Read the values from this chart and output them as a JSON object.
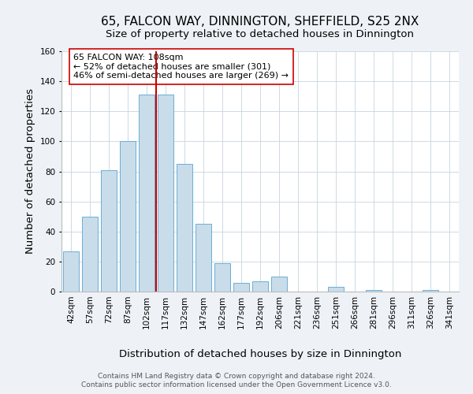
{
  "title": "65, FALCON WAY, DINNINGTON, SHEFFIELD, S25 2NX",
  "subtitle": "Size of property relative to detached houses in Dinnington",
  "xlabel": "Distribution of detached houses by size in Dinnington",
  "ylabel": "Number of detached properties",
  "bar_labels": [
    "42sqm",
    "57sqm",
    "72sqm",
    "87sqm",
    "102sqm",
    "117sqm",
    "132sqm",
    "147sqm",
    "162sqm",
    "177sqm",
    "192sqm",
    "206sqm",
    "221sqm",
    "236sqm",
    "251sqm",
    "266sqm",
    "281sqm",
    "296sqm",
    "311sqm",
    "326sqm",
    "341sqm"
  ],
  "bar_values": [
    27,
    50,
    81,
    100,
    131,
    131,
    85,
    45,
    19,
    6,
    7,
    10,
    0,
    0,
    3,
    0,
    1,
    0,
    0,
    1,
    0
  ],
  "bar_color": "#c9dcea",
  "bar_edge_color": "#6aafd6",
  "ylim": [
    0,
    160
  ],
  "yticks": [
    0,
    20,
    40,
    60,
    80,
    100,
    120,
    140,
    160
  ],
  "property_line_color": "#cc0000",
  "annotation_line1": "65 FALCON WAY: 108sqm",
  "annotation_line2": "← 52% of detached houses are smaller (301)",
  "annotation_line3": "46% of semi-detached houses are larger (269) →",
  "footer_line1": "Contains HM Land Registry data © Crown copyright and database right 2024.",
  "footer_line2": "Contains public sector information licensed under the Open Government Licence v3.0.",
  "bg_color": "#eef2f7",
  "plot_bg_color": "#ffffff",
  "title_fontsize": 11,
  "subtitle_fontsize": 9.5,
  "axis_label_fontsize": 9.5,
  "tick_fontsize": 7.5,
  "footer_fontsize": 6.5
}
